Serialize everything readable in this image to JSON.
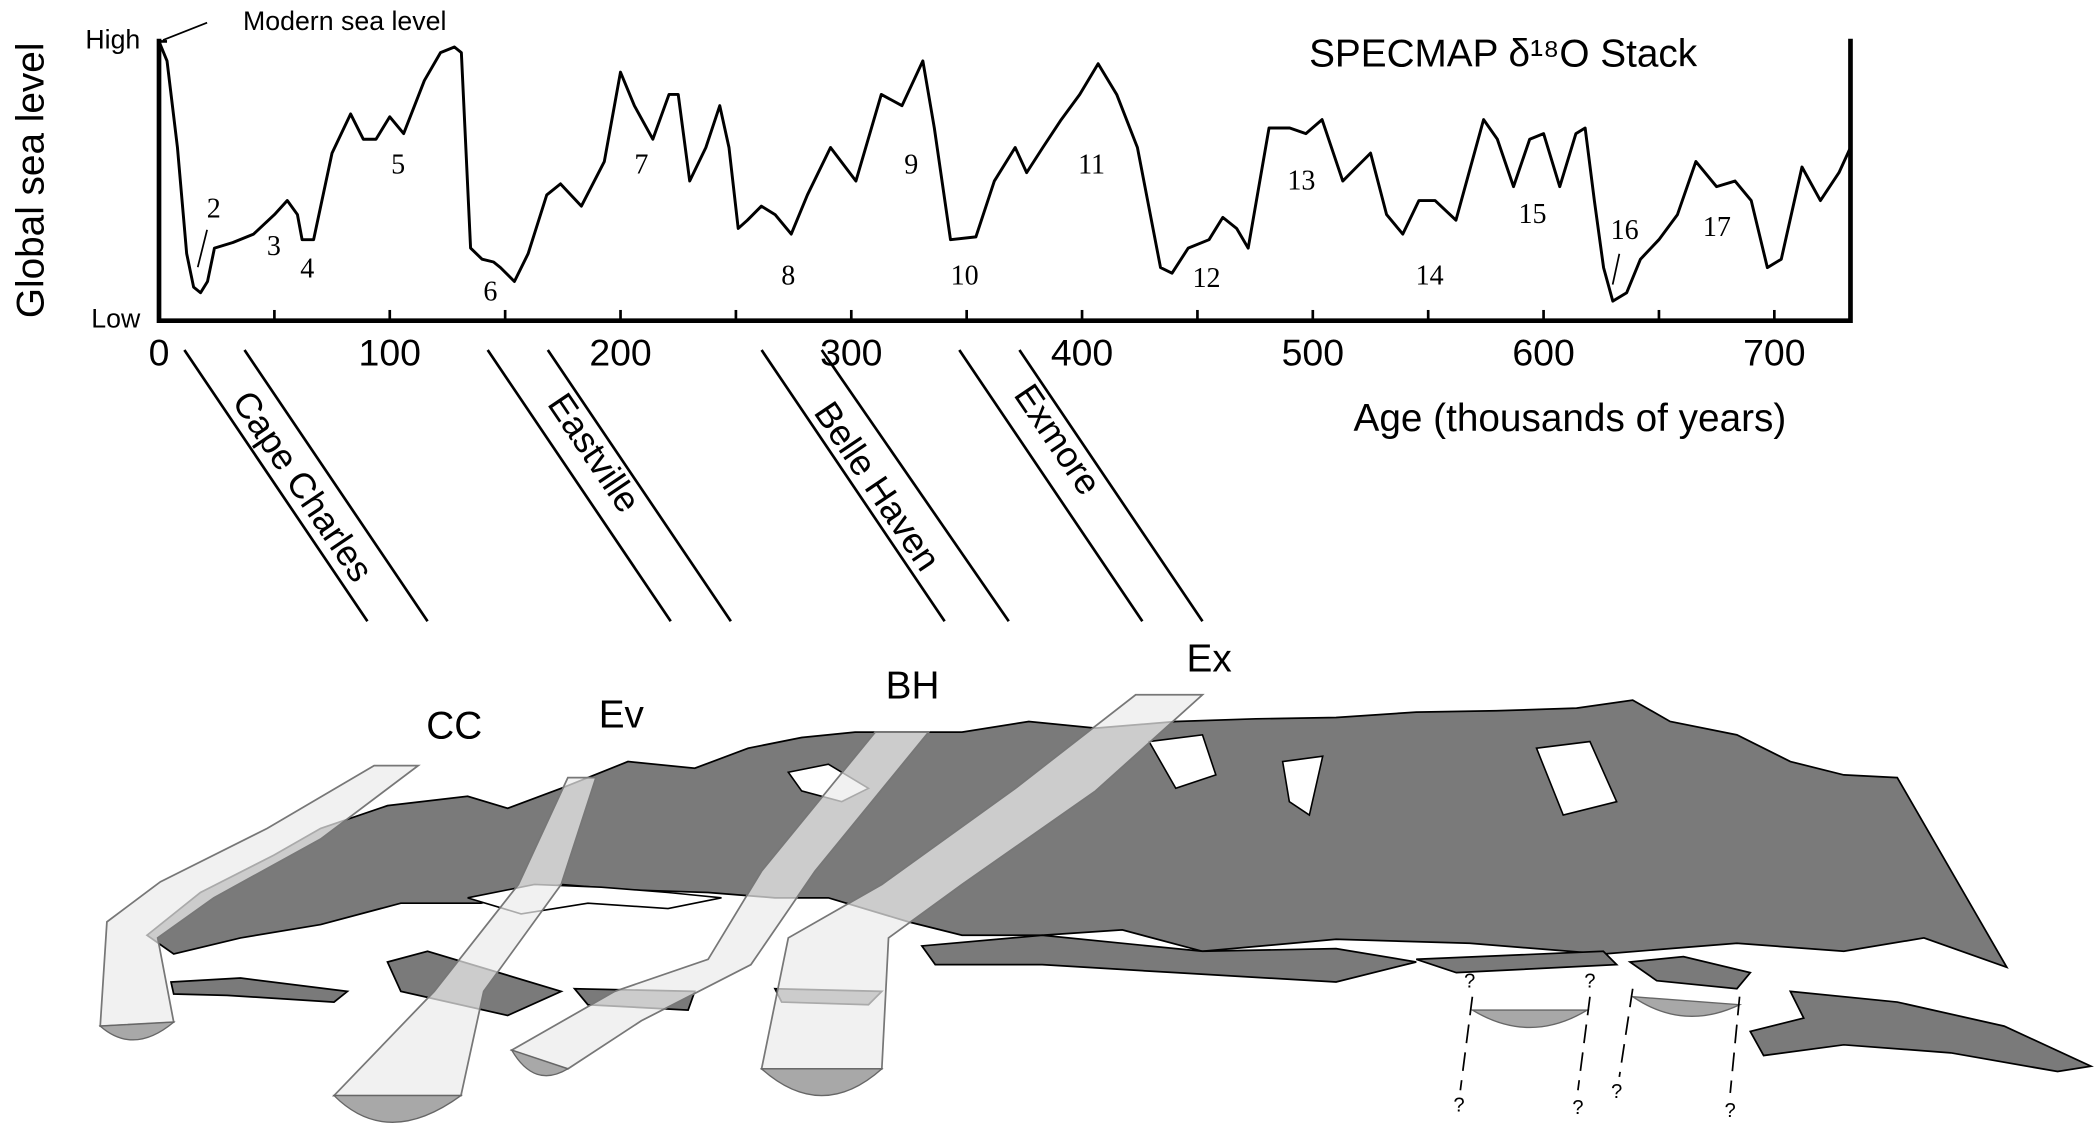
{
  "chart_data": {
    "type": "line",
    "title": "SPECMAP δ¹⁸O Stack",
    "x_label": "Age (thousands of years)",
    "y_label": "Global sea level",
    "xlim": [
      0,
      733
    ],
    "ylim": [
      0,
      1
    ],
    "xticks": [
      0,
      100,
      200,
      300,
      400,
      500,
      600,
      700
    ],
    "xminorticks": [
      50,
      150,
      250,
      350,
      450,
      550,
      650
    ],
    "yticks": [
      {
        "value": 0,
        "label": "Low"
      },
      {
        "value": 1,
        "label": "High"
      }
    ],
    "color": "#000000",
    "x": [
      0,
      3.5,
      8,
      12,
      15,
      18,
      21,
      24,
      32,
      41,
      50,
      55.6,
      60,
      62,
      67,
      75,
      83,
      88.5,
      94,
      100,
      106,
      115,
      122,
      128,
      131,
      135,
      140,
      145,
      148,
      154,
      160,
      168,
      174,
      183,
      193,
      200,
      206,
      214,
      221,
      225,
      230,
      237,
      243,
      247,
      251,
      255,
      261,
      267,
      274,
      281,
      291,
      302,
      313,
      322,
      331,
      336,
      343,
      354,
      362,
      371,
      376,
      383,
      391,
      399,
      407,
      415,
      424,
      434,
      439,
      446,
      455,
      461,
      467,
      472,
      481,
      490,
      497,
      504,
      513,
      519,
      525,
      532,
      539,
      546,
      553,
      562,
      574,
      580,
      587,
      594,
      600,
      607,
      614,
      618,
      622,
      626,
      630,
      636,
      642,
      650,
      658,
      666,
      675,
      683,
      690,
      697,
      703,
      712,
      720,
      728,
      733
    ],
    "values": [
      1.0,
      0.93,
      0.62,
      0.24,
      0.12,
      0.1,
      0.14,
      0.26,
      0.28,
      0.31,
      0.38,
      0.43,
      0.38,
      0.29,
      0.29,
      0.6,
      0.74,
      0.65,
      0.65,
      0.73,
      0.67,
      0.86,
      0.96,
      0.98,
      0.96,
      0.26,
      0.22,
      0.21,
      0.19,
      0.14,
      0.24,
      0.45,
      0.49,
      0.41,
      0.57,
      0.89,
      0.77,
      0.65,
      0.81,
      0.81,
      0.5,
      0.62,
      0.77,
      0.62,
      0.33,
      0.36,
      0.41,
      0.38,
      0.31,
      0.45,
      0.62,
      0.5,
      0.81,
      0.77,
      0.93,
      0.69,
      0.29,
      0.3,
      0.5,
      0.62,
      0.53,
      0.62,
      0.72,
      0.81,
      0.92,
      0.81,
      0.62,
      0.19,
      0.17,
      0.26,
      0.29,
      0.37,
      0.33,
      0.26,
      0.69,
      0.69,
      0.67,
      0.72,
      0.5,
      0.55,
      0.6,
      0.38,
      0.31,
      0.43,
      0.43,
      0.36,
      0.72,
      0.65,
      0.48,
      0.65,
      0.67,
      0.48,
      0.67,
      0.69,
      0.43,
      0.19,
      0.07,
      0.1,
      0.22,
      0.29,
      0.38,
      0.57,
      0.48,
      0.5,
      0.43,
      0.19,
      0.22,
      0.55,
      0.43,
      0.53,
      0.62
    ],
    "annotations": [
      "Modern sea level",
      "2",
      "3",
      "4",
      "5",
      "6",
      "7",
      "8",
      "9",
      "10",
      "11",
      "12",
      "13",
      "14",
      "15",
      "16",
      "17"
    ]
  },
  "diagram": {
    "units": [
      {
        "name": "Cape Charles",
        "abbreviation": "CC"
      },
      {
        "name": "Eastville",
        "abbreviation": "Ev"
      },
      {
        "name": "Belle Haven",
        "abbreviation": "BH"
      },
      {
        "name": "Exmore",
        "abbreviation": "Ex"
      }
    ],
    "question_marks": [
      "?",
      "?",
      "?",
      "?",
      "?",
      "?"
    ]
  }
}
